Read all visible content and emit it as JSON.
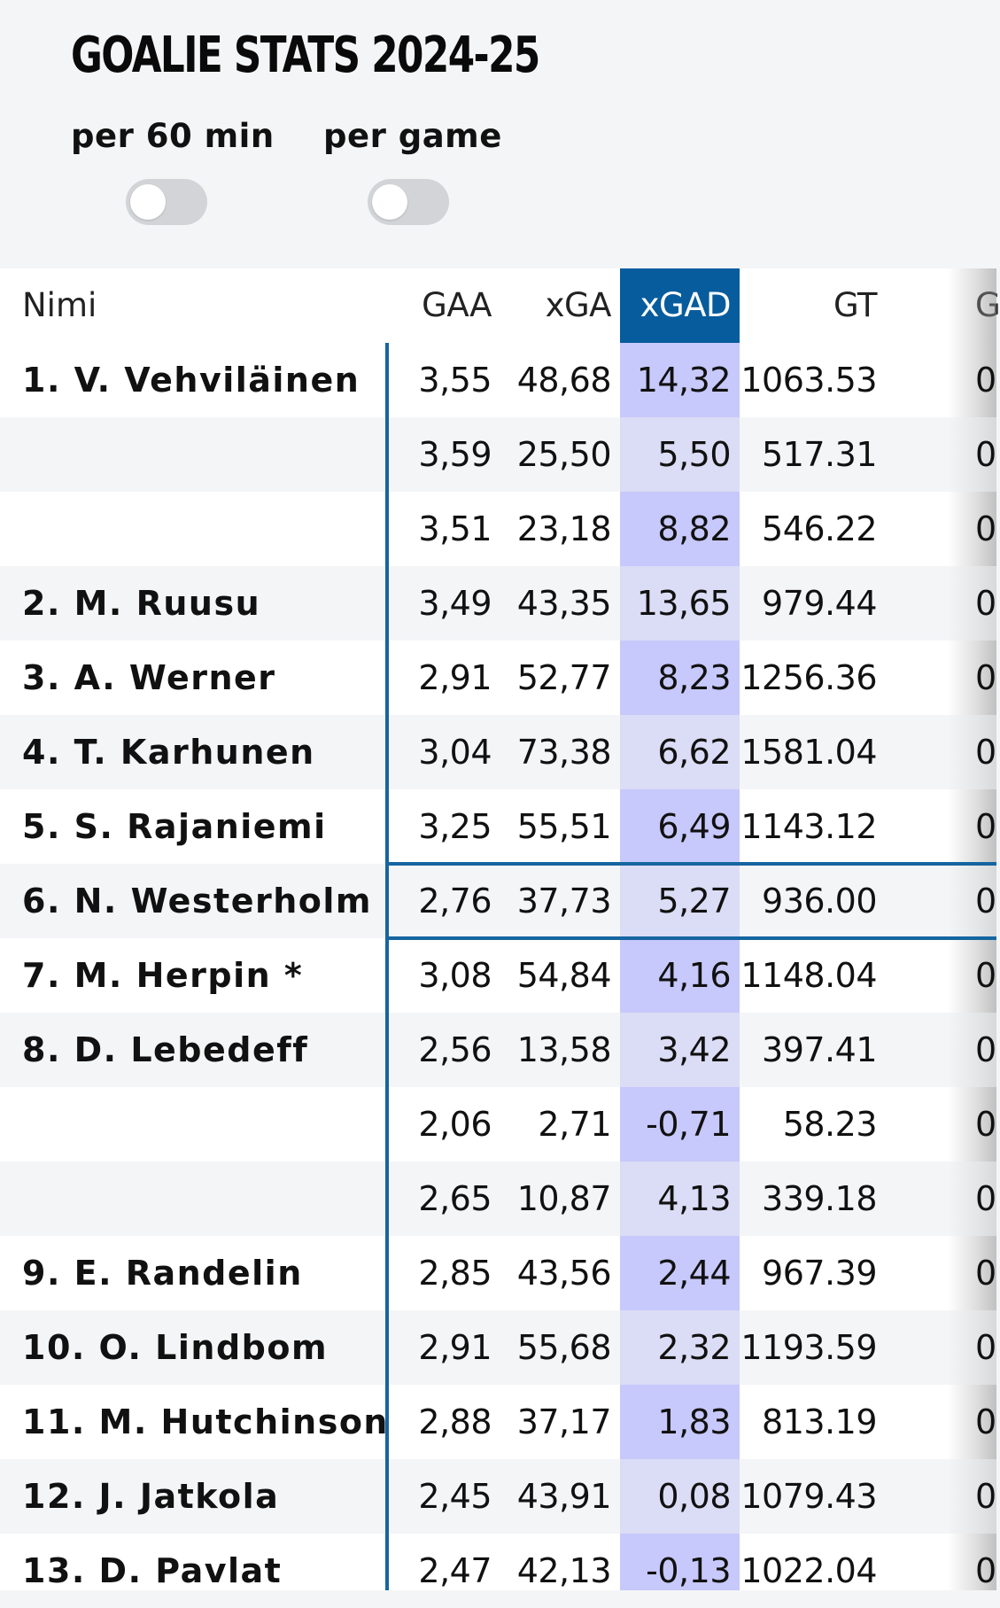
{
  "title": "GOALIE STATS 2024-25",
  "toggles": [
    {
      "label": "per 60 min",
      "on": false
    },
    {
      "label": "per game",
      "on": false
    }
  ],
  "colors": {
    "accent": "#065c9c",
    "highlight_column": "#c7c8fb",
    "divider": "#1565a0"
  },
  "table": {
    "headers": {
      "name": "Nimi",
      "gaa": "GAA",
      "xga": "xGA",
      "xgad": "xGAD",
      "gt": "GT",
      "g": "G"
    },
    "sorted_column": "xGAD",
    "rows": [
      {
        "name": "1.  V. Vehviläinen",
        "gaa": "3,55",
        "xga": "48,68",
        "xgad": "14,32",
        "gt": "1063.53",
        "g": "0"
      },
      {
        "name": "",
        "gaa": "3,59",
        "xga": "25,50",
        "xgad": "5,50",
        "gt": "517.31",
        "g": "0"
      },
      {
        "name": "",
        "gaa": "3,51",
        "xga": "23,18",
        "xgad": "8,82",
        "gt": "546.22",
        "g": "0"
      },
      {
        "name": "2.  M. Ruusu",
        "gaa": "3,49",
        "xga": "43,35",
        "xgad": "13,65",
        "gt": "979.44",
        "g": "0"
      },
      {
        "name": "3.  A. Werner",
        "gaa": "2,91",
        "xga": "52,77",
        "xgad": "8,23",
        "gt": "1256.36",
        "g": "0"
      },
      {
        "name": "4.  T. Karhunen",
        "gaa": "3,04",
        "xga": "73,38",
        "xgad": "6,62",
        "gt": "1581.04",
        "g": "0"
      },
      {
        "name": "5.  S. Rajaniemi",
        "gaa": "3,25",
        "xga": "55,51",
        "xgad": "6,49",
        "gt": "1143.12",
        "g": "0"
      },
      {
        "name": "6.  N. Westerholm",
        "gaa": "2,76",
        "xga": "37,73",
        "xgad": "5,27",
        "gt": "936.00",
        "g": "0"
      },
      {
        "name": "7.  M. Herpin *",
        "gaa": "3,08",
        "xga": "54,84",
        "xgad": "4,16",
        "gt": "1148.04",
        "g": "0"
      },
      {
        "name": "8.  D. Lebedeff",
        "gaa": "2,56",
        "xga": "13,58",
        "xgad": "3,42",
        "gt": "397.41",
        "g": "0"
      },
      {
        "name": "",
        "gaa": "2,06",
        "xga": "2,71",
        "xgad": "-0,71",
        "gt": "58.23",
        "g": "0"
      },
      {
        "name": "",
        "gaa": "2,65",
        "xga": "10,87",
        "xgad": "4,13",
        "gt": "339.18",
        "g": "0"
      },
      {
        "name": "9.  E. Randelin",
        "gaa": "2,85",
        "xga": "43,56",
        "xgad": "2,44",
        "gt": "967.39",
        "g": "0"
      },
      {
        "name": "10.  O. Lindbom",
        "gaa": "2,91",
        "xga": "55,68",
        "xgad": "2,32",
        "gt": "1193.59",
        "g": "0"
      },
      {
        "name": "11.  M. Hutchinson",
        "gaa": "2,88",
        "xga": "37,17",
        "xgad": "1,83",
        "gt": "813.19",
        "g": "0"
      },
      {
        "name": "12.  J. Jatkola",
        "gaa": "2,45",
        "xga": "43,91",
        "xgad": "0,08",
        "gt": "1079.43",
        "g": "0"
      },
      {
        "name": "13.  D. Pavlat",
        "gaa": "2,47",
        "xga": "42,13",
        "xgad": "-0,13",
        "gt": "1022.04",
        "g": "0"
      }
    ]
  }
}
